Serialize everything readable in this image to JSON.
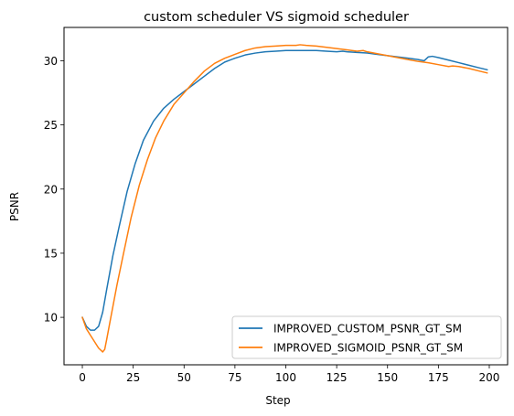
{
  "chart_data": {
    "type": "line",
    "title": "custom scheduler VS sigmoid scheduler",
    "xlabel": "Step",
    "ylabel": "PSNR",
    "xlim": [
      -9,
      209
    ],
    "ylim": [
      6.3,
      32.6
    ],
    "xticks": [
      0,
      25,
      50,
      75,
      100,
      125,
      150,
      175,
      200
    ],
    "yticks": [
      10,
      15,
      20,
      25,
      30
    ],
    "grid": false,
    "legend": "lower-right",
    "series": [
      {
        "name": "IMPROVED_CUSTOM_PSNR_GT_SM",
        "color": "#1f77b4",
        "x": [
          0,
          2,
          4,
          6,
          8,
          10,
          12,
          15,
          18,
          22,
          26,
          30,
          35,
          40,
          45,
          50,
          55,
          60,
          65,
          70,
          75,
          80,
          85,
          90,
          95,
          100,
          105,
          110,
          115,
          120,
          125,
          128,
          130,
          135,
          140,
          145,
          150,
          155,
          160,
          165,
          168,
          170,
          172,
          175,
          180,
          185,
          190,
          195,
          199
        ],
        "y": [
          10.0,
          9.3,
          9.0,
          9.0,
          9.3,
          10.4,
          12.2,
          14.8,
          17.0,
          19.8,
          22.0,
          23.8,
          25.3,
          26.3,
          27.0,
          27.6,
          28.2,
          28.8,
          29.4,
          29.9,
          30.2,
          30.45,
          30.6,
          30.7,
          30.75,
          30.8,
          30.8,
          30.8,
          30.8,
          30.75,
          30.7,
          30.75,
          30.7,
          30.65,
          30.6,
          30.5,
          30.4,
          30.3,
          30.2,
          30.1,
          30.0,
          30.3,
          30.35,
          30.25,
          30.05,
          29.85,
          29.65,
          29.45,
          29.3
        ]
      },
      {
        "name": "IMPROVED_SIGMOID_PSNR_GT_SM",
        "color": "#ff7f0e",
        "x": [
          0,
          2,
          4,
          6,
          8,
          10,
          11,
          12,
          14,
          17,
          20,
          24,
          28,
          32,
          36,
          40,
          45,
          50,
          55,
          60,
          65,
          70,
          75,
          80,
          85,
          90,
          95,
          100,
          105,
          107,
          110,
          115,
          120,
          125,
          130,
          135,
          138,
          140,
          145,
          150,
          155,
          160,
          165,
          170,
          175,
          180,
          182,
          185,
          190,
          195,
          199
        ],
        "y": [
          10.0,
          9.1,
          8.6,
          8.1,
          7.6,
          7.3,
          7.5,
          8.3,
          10.0,
          12.5,
          14.8,
          17.8,
          20.3,
          22.3,
          24.0,
          25.3,
          26.6,
          27.5,
          28.4,
          29.2,
          29.8,
          30.2,
          30.5,
          30.8,
          31.0,
          31.1,
          31.15,
          31.2,
          31.2,
          31.25,
          31.2,
          31.15,
          31.05,
          30.95,
          30.85,
          30.75,
          30.8,
          30.7,
          30.55,
          30.4,
          30.25,
          30.1,
          29.95,
          29.85,
          29.7,
          29.55,
          29.6,
          29.55,
          29.4,
          29.2,
          29.05
        ]
      }
    ]
  }
}
